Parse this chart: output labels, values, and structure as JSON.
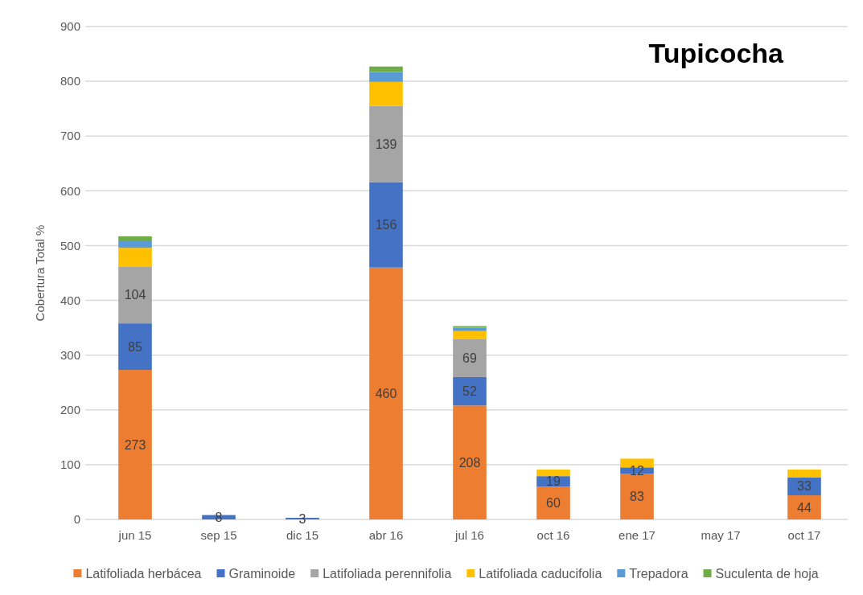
{
  "chart_data": {
    "type": "bar",
    "stacked": true,
    "title": "Tupicocha",
    "ylabel": "Cobertura Total %",
    "categories": [
      "jun 15",
      "sep 15",
      "dic 15",
      "abr 16",
      "jul 16",
      "oct 16",
      "ene 17",
      "may 17",
      "oct 17"
    ],
    "series": [
      {
        "name": "Latifoliada herbácea",
        "color": "#ed7d31",
        "values": [
          273,
          null,
          null,
          460,
          208,
          60,
          83,
          null,
          44
        ],
        "value_labels": [
          "273",
          null,
          null,
          "460",
          "208",
          "60",
          "83",
          null,
          "44"
        ]
      },
      {
        "name": "Graminoide",
        "color": "#4472c4",
        "values": [
          85,
          8,
          3,
          156,
          52,
          19,
          12,
          null,
          33
        ],
        "value_labels": [
          "85",
          "8",
          "3",
          "156",
          "52",
          "19",
          "12",
          null,
          "33"
        ]
      },
      {
        "name": "Latifoliada perennifolia",
        "color": "#a5a5a5",
        "values": [
          104,
          null,
          null,
          139,
          69,
          null,
          null,
          null,
          null
        ],
        "value_labels": [
          "104",
          null,
          null,
          "139",
          "69",
          null,
          null,
          null,
          null
        ]
      },
      {
        "name": "Latifoliada caducifolia",
        "color": "#ffc000",
        "values": [
          34,
          null,
          null,
          44,
          15,
          12,
          16,
          null,
          14
        ]
      },
      {
        "name": "Trepadora",
        "color": "#5b9bd5",
        "values": [
          12,
          null,
          null,
          18,
          6,
          null,
          null,
          null,
          null
        ]
      },
      {
        "name": "Suculenta de hoja",
        "color": "#70ad47",
        "values": [
          9,
          null,
          null,
          10,
          3,
          null,
          null,
          null,
          null
        ]
      }
    ],
    "ylim": [
      0,
      900
    ],
    "yticks": [
      0,
      100,
      200,
      300,
      400,
      500,
      600,
      700,
      800,
      900
    ],
    "grid": "y",
    "legend": "bottom"
  }
}
